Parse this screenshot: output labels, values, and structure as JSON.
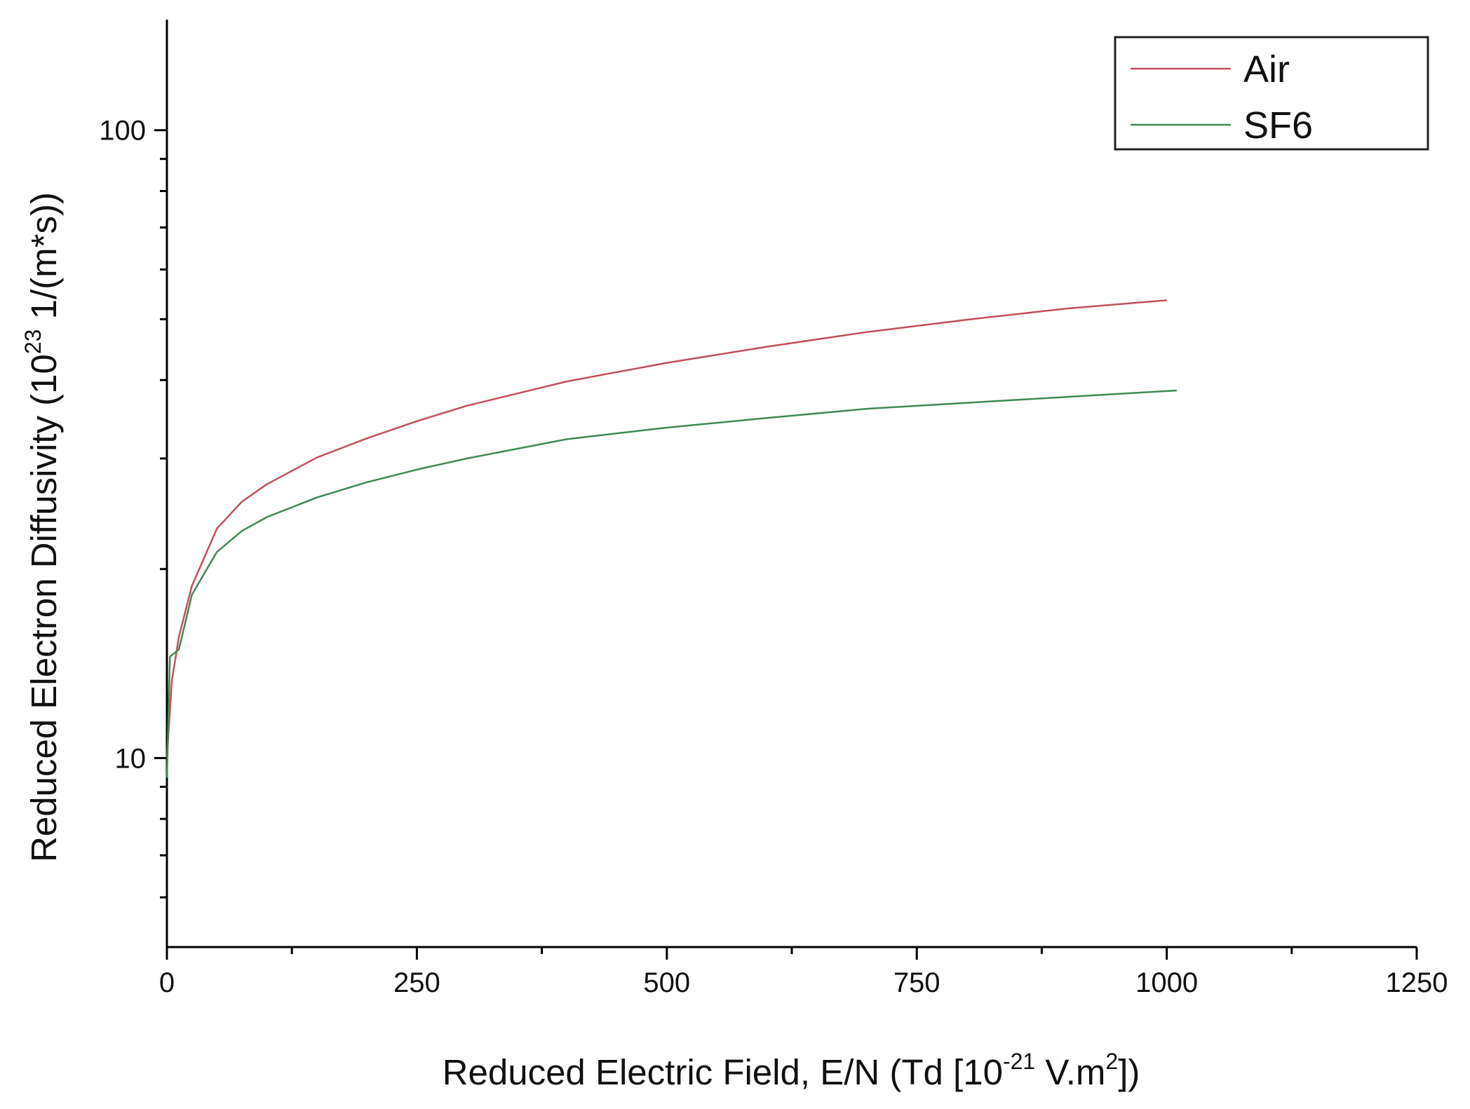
{
  "chart_data": {
    "type": "line",
    "xlabel": {
      "main": "Reduced Electric Field, E/N (Td [10",
      "sup1": "-21",
      "mid": " V.m",
      "sup2": "2",
      "end": "])"
    },
    "ylabel": {
      "main": "Reduced Electron Diffusivity (10",
      "sup": "23",
      "end": " 1/(m*s))"
    },
    "x_scale": "linear",
    "y_scale": "log",
    "xlim": [
      0,
      1250
    ],
    "ylim": [
      5,
      150
    ],
    "x_ticks": [
      0,
      250,
      500,
      750,
      1000,
      1250
    ],
    "x_minor_ticks": [
      125,
      375,
      625,
      875,
      1125
    ],
    "y_ticks": [
      10,
      100
    ],
    "y_minor_ticks": [
      6,
      7,
      8,
      9,
      20,
      30,
      40,
      50,
      60,
      70,
      80,
      90
    ],
    "grid": false,
    "legend_position": "top-right",
    "series": [
      {
        "name": "Air",
        "color": "#c0505a",
        "x": [
          0,
          5,
          12,
          25,
          50,
          75,
          100,
          150,
          200,
          250,
          300,
          400,
          500,
          600,
          700,
          800,
          900,
          1000
        ],
        "y": [
          10,
          13.3,
          15.6,
          18.8,
          23.2,
          25.6,
          27.3,
          30.1,
          32.3,
          34.4,
          36.4,
          39.8,
          42.6,
          45.2,
          47.7,
          49.9,
          52.0,
          53.6
        ]
      },
      {
        "name": "SF6",
        "color": "#3f8a55",
        "x": [
          0,
          3,
          12,
          25,
          50,
          75,
          100,
          150,
          200,
          250,
          300,
          400,
          500,
          600,
          700,
          800,
          900,
          1010
        ],
        "y": [
          9.3,
          14.5,
          14.9,
          18.2,
          21.3,
          23.0,
          24.2,
          26.0,
          27.5,
          28.8,
          30.0,
          32.2,
          33.6,
          34.8,
          36.0,
          36.8,
          37.6,
          38.5
        ]
      }
    ]
  }
}
